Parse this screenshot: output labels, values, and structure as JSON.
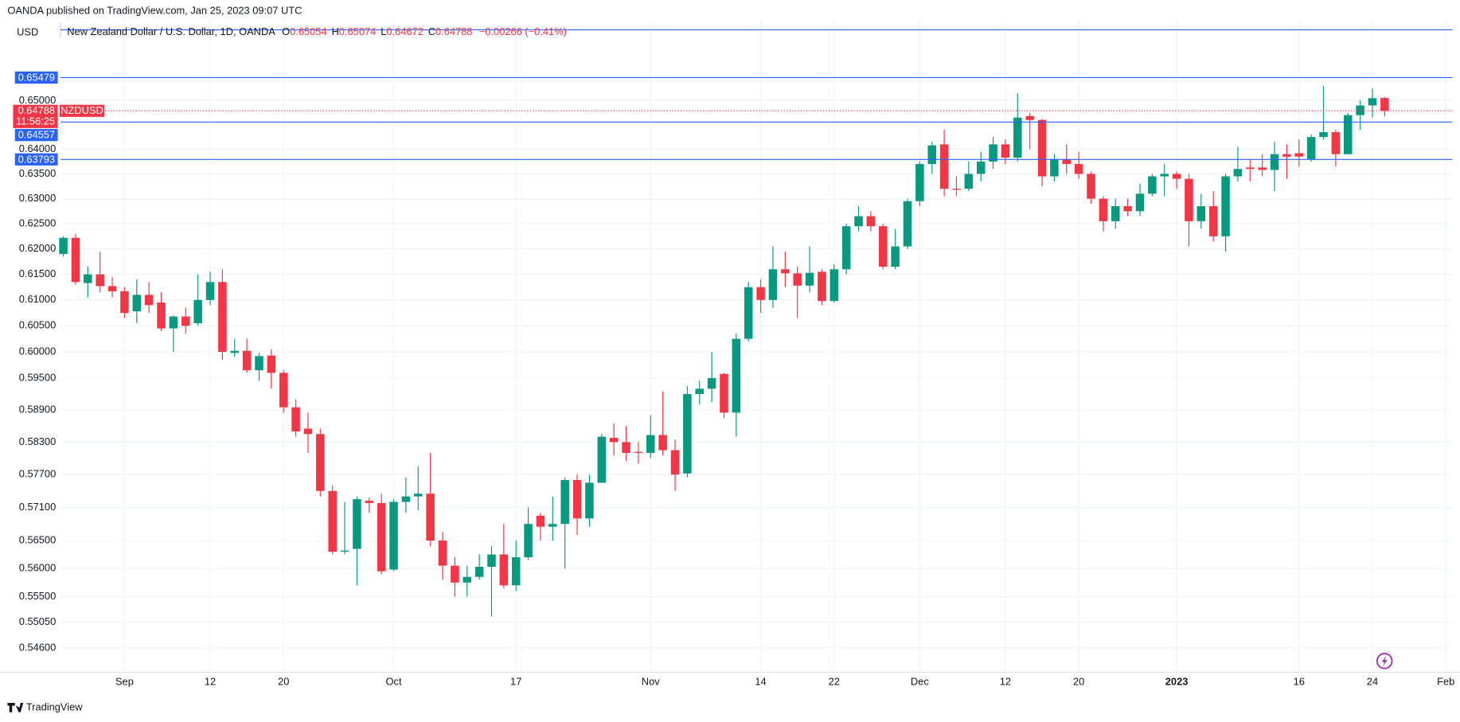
{
  "header": {
    "published": "OANDA published on TradingView.com, Jan 25, 2023 09:07 UTC",
    "currency": "USD",
    "symbol_title": "New Zealand Dollar / U.S. Dollar, 1D, OANDA",
    "legend_keys": [
      "O",
      "H",
      "L",
      "C"
    ],
    "change": "−0.00266 (−0.41%)"
  },
  "footer": {
    "brand": "TradingView"
  },
  "chart_data": {
    "type": "candlestick",
    "symbol": "NZDUSD",
    "countdown": "11:56:25",
    "up_color": "#089981",
    "down_color": "#f23645",
    "hline_color": "#2962ff",
    "log_scale": true,
    "grid": true,
    "ylim": [
      0.5418,
      0.6668
    ],
    "yticks": [
      {
        "value": 0.65,
        "label": "0.65000"
      },
      {
        "value": 0.64,
        "label": "0.64000"
      },
      {
        "value": 0.635,
        "label": "0.63500"
      },
      {
        "value": 0.63,
        "label": "0.63000"
      },
      {
        "value": 0.625,
        "label": "0.62500"
      },
      {
        "value": 0.62,
        "label": "0.62000"
      },
      {
        "value": 0.615,
        "label": "0.61500"
      },
      {
        "value": 0.61,
        "label": "0.61000"
      },
      {
        "value": 0.605,
        "label": "0.60500"
      },
      {
        "value": 0.6,
        "label": "0.60000"
      },
      {
        "value": 0.595,
        "label": "0.59500"
      },
      {
        "value": 0.589,
        "label": "0.58900"
      },
      {
        "value": 0.583,
        "label": "0.58300"
      },
      {
        "value": 0.577,
        "label": "0.57700"
      },
      {
        "value": 0.571,
        "label": "0.57100"
      },
      {
        "value": 0.565,
        "label": "0.56500"
      },
      {
        "value": 0.56,
        "label": "0.56000"
      },
      {
        "value": 0.555,
        "label": "0.55500"
      },
      {
        "value": 0.5505,
        "label": "0.55050"
      },
      {
        "value": 0.546,
        "label": "0.54600"
      }
    ],
    "hlines": [
      {
        "value": 0.65479
      },
      {
        "value": 0.64557
      },
      {
        "value": 0.63793
      }
    ],
    "categories": [
      null,
      null,
      null,
      null,
      null,
      "Sep",
      null,
      null,
      null,
      null,
      null,
      null,
      "12",
      null,
      null,
      null,
      null,
      null,
      "20",
      null,
      null,
      null,
      null,
      null,
      null,
      null,
      null,
      "Oct",
      null,
      null,
      null,
      null,
      null,
      null,
      null,
      null,
      null,
      "17",
      null,
      null,
      null,
      null,
      null,
      null,
      null,
      null,
      null,
      null,
      "Nov",
      null,
      null,
      null,
      null,
      null,
      null,
      null,
      null,
      "14",
      null,
      null,
      null,
      null,
      null,
      "22",
      null,
      null,
      null,
      null,
      null,
      null,
      "Dec",
      null,
      null,
      null,
      null,
      null,
      null,
      "12",
      null,
      null,
      null,
      null,
      null,
      "20",
      null,
      null,
      null,
      null,
      null,
      null,
      null,
      "2023",
      null,
      null,
      null,
      null,
      null,
      null,
      null,
      null,
      null,
      "16",
      null,
      null,
      null,
      null,
      null,
      "24",
      null,
      null,
      null,
      null,
      null,
      "Feb"
    ],
    "open": [
      0.619,
      0.6222,
      0.6133,
      0.615,
      0.6127,
      0.6117,
      0.6078,
      0.611,
      0.6095,
      0.6045,
      0.6068,
      0.6055,
      0.61,
      0.6135,
      0.5998,
      0.6002,
      0.5965,
      0.5993,
      0.596,
      0.5895,
      0.5855,
      0.5845,
      0.574,
      0.563,
      0.5635,
      0.5722,
      0.5718,
      0.5598,
      0.572,
      0.573,
      0.5735,
      0.565,
      0.5605,
      0.5575,
      0.5585,
      0.5603,
      0.5625,
      0.557,
      0.562,
      0.5695,
      0.5675,
      0.568,
      0.576,
      0.569,
      0.5755,
      0.5838,
      0.583,
      0.5812,
      0.581,
      0.5843,
      0.5815,
      0.5772,
      0.592,
      0.593,
      0.5958,
      0.5885,
      0.6025,
      0.6125,
      0.61,
      0.616,
      0.6152,
      0.6128,
      0.6155,
      0.6098,
      0.616,
      0.6245,
      0.6265,
      0.6245,
      0.6165,
      0.6205,
      0.6295,
      0.637,
      0.641,
      0.632,
      0.632,
      0.635,
      0.6375,
      0.641,
      0.6383,
      0.6468,
      0.646,
      0.6345,
      0.638,
      0.637,
      0.635,
      0.63,
      0.6255,
      0.6285,
      0.6275,
      0.631,
      0.6345,
      0.635,
      0.634,
      0.6255,
      0.6285,
      0.6225,
      0.6345,
      0.6363,
      0.6363,
      0.6358,
      0.639,
      0.6392,
      0.638,
      0.6425,
      0.6435,
      0.639,
      0.647,
      0.649,
      0.65054,
      null,
      null,
      null,
      null,
      null
    ],
    "high": [
      0.6225,
      0.623,
      0.6165,
      0.6195,
      0.6145,
      0.6125,
      0.614,
      0.6135,
      0.6115,
      0.607,
      0.6085,
      0.615,
      0.6155,
      0.616,
      0.6025,
      0.6025,
      0.5998,
      0.6005,
      0.5965,
      0.591,
      0.5885,
      0.5855,
      0.575,
      0.572,
      0.573,
      0.5728,
      0.5735,
      0.5725,
      0.5765,
      0.5785,
      0.581,
      0.5665,
      0.562,
      0.5605,
      0.5625,
      0.564,
      0.568,
      0.565,
      0.571,
      0.57,
      0.573,
      0.5765,
      0.577,
      0.577,
      0.5845,
      0.5865,
      0.586,
      0.583,
      0.588,
      0.5925,
      0.5835,
      0.5935,
      0.5945,
      0.6,
      0.596,
      0.6035,
      0.6135,
      0.614,
      0.6205,
      0.6195,
      0.6165,
      0.6205,
      0.616,
      0.617,
      0.625,
      0.6285,
      0.6275,
      0.625,
      0.624,
      0.63,
      0.6375,
      0.6415,
      0.644,
      0.6345,
      0.6375,
      0.6395,
      0.6425,
      0.642,
      0.6515,
      0.6475,
      0.6462,
      0.639,
      0.641,
      0.6395,
      0.6355,
      0.6305,
      0.63,
      0.63,
      0.633,
      0.635,
      0.637,
      0.6355,
      0.635,
      0.631,
      0.6315,
      0.635,
      0.6405,
      0.638,
      0.639,
      0.6415,
      0.641,
      0.642,
      0.643,
      0.653,
      0.644,
      0.6475,
      0.65,
      0.6525,
      0.65074,
      null,
      null,
      null,
      null,
      null
    ],
    "low": [
      0.6185,
      0.613,
      0.6105,
      0.6115,
      0.6105,
      0.6065,
      0.6055,
      0.6075,
      0.604,
      0.6,
      0.6035,
      0.605,
      0.609,
      0.5985,
      0.599,
      0.596,
      0.5945,
      0.593,
      0.5885,
      0.584,
      0.581,
      0.573,
      0.5625,
      0.5625,
      0.557,
      0.57,
      0.559,
      0.5595,
      0.57,
      0.5705,
      0.564,
      0.558,
      0.555,
      0.555,
      0.558,
      0.5515,
      0.5565,
      0.556,
      0.5615,
      0.565,
      0.565,
      0.56,
      0.566,
      0.5675,
      0.5755,
      0.5805,
      0.5795,
      0.579,
      0.58,
      0.5805,
      0.574,
      0.5765,
      0.59,
      0.5905,
      0.5875,
      0.584,
      0.602,
      0.6075,
      0.6085,
      0.6125,
      0.6065,
      0.6115,
      0.609,
      0.6095,
      0.615,
      0.6235,
      0.6235,
      0.616,
      0.616,
      0.62,
      0.6285,
      0.635,
      0.6305,
      0.6305,
      0.6315,
      0.6335,
      0.636,
      0.637,
      0.6375,
      0.64,
      0.6325,
      0.6335,
      0.635,
      0.634,
      0.629,
      0.6235,
      0.624,
      0.6265,
      0.6265,
      0.6305,
      0.6305,
      0.632,
      0.6205,
      0.624,
      0.6215,
      0.6195,
      0.6335,
      0.6335,
      0.6345,
      0.6315,
      0.634,
      0.6365,
      0.6375,
      0.642,
      0.6365,
      0.639,
      0.644,
      0.6465,
      0.64672,
      null,
      null,
      null,
      null,
      null
    ],
    "close": [
      0.6222,
      0.6135,
      0.615,
      0.6127,
      0.6117,
      0.6075,
      0.611,
      0.609,
      0.6045,
      0.6068,
      0.605,
      0.61,
      0.6135,
      0.6,
      0.6002,
      0.5965,
      0.5992,
      0.596,
      0.5895,
      0.585,
      0.5845,
      0.574,
      0.563,
      0.5632,
      0.5725,
      0.5718,
      0.5595,
      0.572,
      0.573,
      0.5735,
      0.565,
      0.5605,
      0.5575,
      0.5585,
      0.5603,
      0.5625,
      0.557,
      0.562,
      0.568,
      0.5675,
      0.568,
      0.576,
      0.569,
      0.5755,
      0.584,
      0.583,
      0.581,
      0.581,
      0.5843,
      0.5815,
      0.577,
      0.592,
      0.593,
      0.595,
      0.5885,
      0.6025,
      0.6125,
      0.61,
      0.616,
      0.6152,
      0.6128,
      0.6153,
      0.6098,
      0.616,
      0.6245,
      0.6265,
      0.6245,
      0.6165,
      0.6205,
      0.6295,
      0.637,
      0.6408,
      0.632,
      0.6318,
      0.635,
      0.6375,
      0.641,
      0.6383,
      0.6465,
      0.646,
      0.6345,
      0.638,
      0.637,
      0.635,
      0.63,
      0.6255,
      0.6285,
      0.6275,
      0.631,
      0.6345,
      0.635,
      0.634,
      0.6255,
      0.6285,
      0.6225,
      0.6345,
      0.636,
      0.636,
      0.6358,
      0.639,
      0.6385,
      0.6385,
      0.6425,
      0.6435,
      0.639,
      0.647,
      0.649,
      0.6505,
      0.64788,
      null,
      null,
      null,
      null,
      null
    ]
  }
}
